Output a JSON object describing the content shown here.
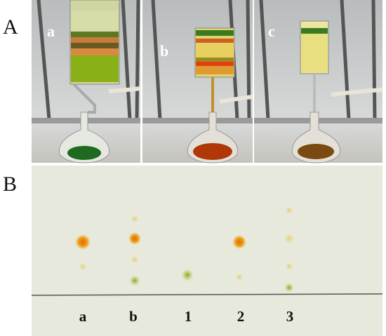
{
  "panels": [
    {
      "label": "A",
      "photos": [
        {
          "label": "a"
        },
        {
          "label": "b"
        },
        {
          "label": "c"
        }
      ]
    },
    {
      "label": "B",
      "lanes": [
        "a",
        "b",
        "1",
        "2",
        "3"
      ]
    }
  ]
}
